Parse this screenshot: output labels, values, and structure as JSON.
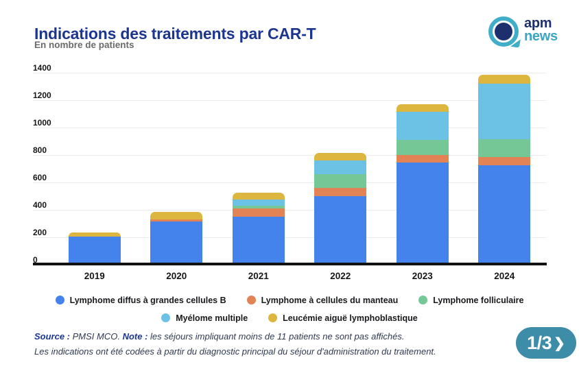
{
  "header": {
    "logo": {
      "line1": "apm",
      "line2": "news"
    }
  },
  "chart_data": {
    "type": "bar",
    "stacked": true,
    "title": "Indications des traitements par CAR-T",
    "subtitle": "En nombre de patients",
    "categories": [
      "2019",
      "2020",
      "2021",
      "2022",
      "2023",
      "2024"
    ],
    "series": [
      {
        "name": "Lymphome diffus à grandes cellules B",
        "color": "#4583ec",
        "values": [
          205,
          315,
          350,
          500,
          745,
          725
        ]
      },
      {
        "name": "Lymphome à cellules du manteau",
        "color": "#e18355",
        "values": [
          0,
          15,
          60,
          60,
          55,
          60
        ]
      },
      {
        "name": "Lymphome folliculaire",
        "color": "#75c795",
        "values": [
          0,
          0,
          20,
          100,
          110,
          130
        ]
      },
      {
        "name": "Myélome multiple",
        "color": "#6cc2e5",
        "values": [
          0,
          0,
          45,
          100,
          205,
          405
        ]
      },
      {
        "name": "Leucémie aiguë lymphoblastique",
        "color": "#dcb63e",
        "values": [
          30,
          55,
          50,
          55,
          55,
          65
        ]
      }
    ],
    "totals": [
      235,
      385,
      525,
      815,
      1170,
      1385
    ],
    "ylim": [
      0,
      1400
    ],
    "yticks": [
      0,
      200,
      400,
      600,
      800,
      1000,
      1200,
      1400
    ],
    "grid": true,
    "legend_position": "bottom",
    "legend_rows": [
      3,
      2
    ]
  },
  "footer": {
    "line1_parts": [
      {
        "text": "Source : ",
        "bold": true
      },
      {
        "text": "PMSI MCO. "
      },
      {
        "text": "Note : ",
        "bold": true
      },
      {
        "text": "les séjours impliquant moins de 11 patients ne sont pas affichés."
      }
    ],
    "line2": "Les indications ont été codées à partir du diagnostic principal du séjour d'administration du traitement.",
    "pager": {
      "label": "1/3",
      "chevron": "❯"
    }
  }
}
